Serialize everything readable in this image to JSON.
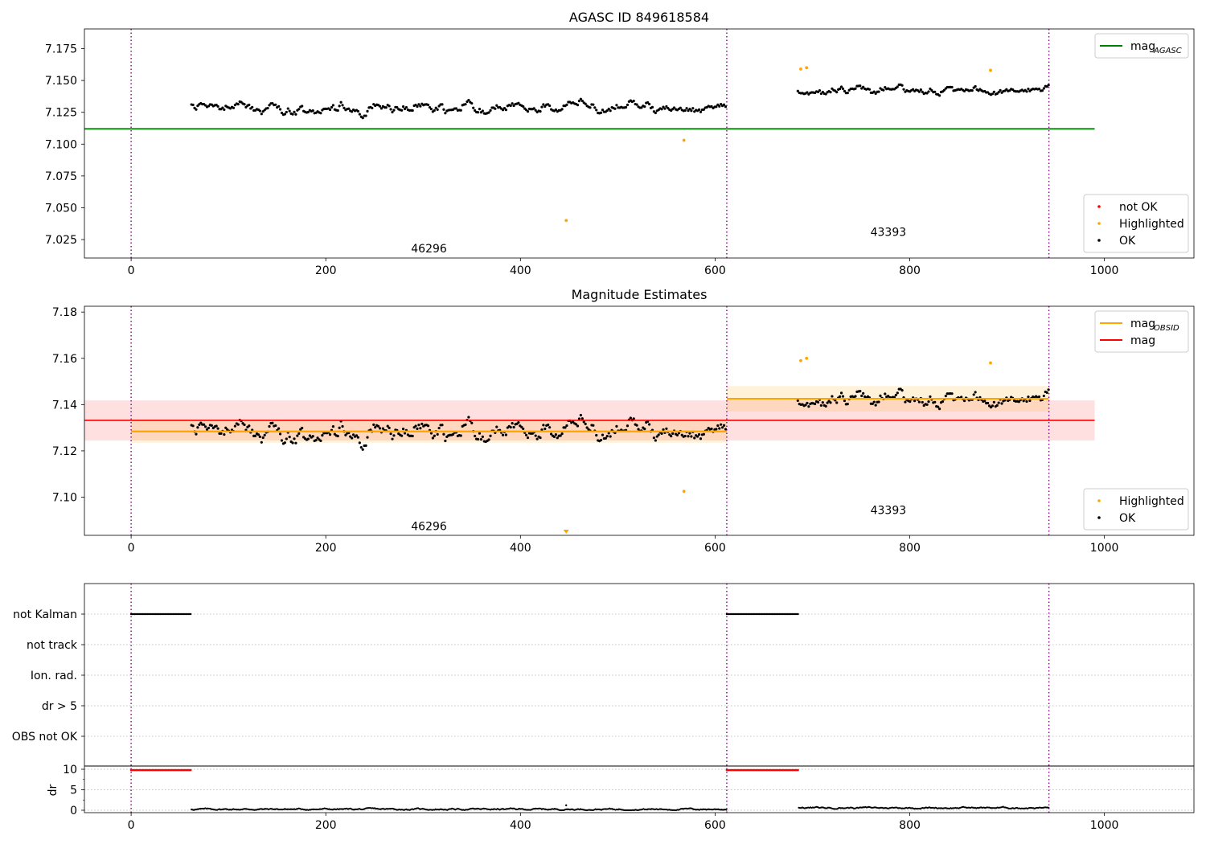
{
  "chart_data": [
    {
      "type": "scatter",
      "title": "AGASC ID 849618584",
      "xlim": [
        -48,
        1092
      ],
      "ylim": [
        7.0105,
        7.1905
      ],
      "xticks": [
        0,
        200,
        400,
        600,
        800,
        1000
      ],
      "yticks": [
        7.025,
        7.05,
        7.075,
        7.1,
        7.125,
        7.15,
        7.175
      ],
      "ytick_labels": [
        "7.025",
        "7.050",
        "7.075",
        "7.100",
        "7.125",
        "7.150",
        "7.175"
      ],
      "obs_boundaries": [
        0,
        612,
        943
      ],
      "obs_labels": [
        {
          "text": "46296",
          "x": 306,
          "y": 7.018
        },
        {
          "text": "43393",
          "x": 778,
          "y": 7.031
        }
      ],
      "mag_agasc": {
        "value": 7.112,
        "x_range": [
          -48,
          990
        ]
      },
      "series": [
        {
          "name": "OK",
          "color": "#000000",
          "segments": [
            {
              "x_start": 62,
              "x_end": 612,
              "level": 7.1285,
              "spread": 0.0065
            },
            {
              "x_start": 685,
              "x_end": 943,
              "level": 7.142,
              "spread": 0.005
            }
          ]
        },
        {
          "name": "Highlighted",
          "color": "#ffa500",
          "points": [
            [
              447,
              7.04
            ],
            [
              568,
              7.103
            ],
            [
              688,
              7.159
            ],
            [
              694,
              7.16
            ],
            [
              883,
              7.158
            ]
          ]
        },
        {
          "name": "not OK",
          "color": "#ff0000",
          "points": []
        }
      ],
      "legend_top": {
        "position": "top-right",
        "entries": [
          {
            "label": "mag",
            "subscript": "AGASC",
            "color": "#008000"
          }
        ]
      },
      "legend_bottom": {
        "position": "lower-right",
        "entries": [
          {
            "label": "not OK",
            "color": "#ff0000"
          },
          {
            "label": "Highlighted",
            "color": "#ffa500"
          },
          {
            "label": "OK",
            "color": "#000000"
          }
        ]
      }
    },
    {
      "type": "scatter",
      "title": "Magnitude Estimates",
      "xlim": [
        -48,
        1092
      ],
      "ylim": [
        7.0835,
        7.1825
      ],
      "xticks": [
        0,
        200,
        400,
        600,
        800,
        1000
      ],
      "yticks": [
        7.1,
        7.12,
        7.14,
        7.16,
        7.18
      ],
      "ytick_labels": [
        "7.10",
        "7.12",
        "7.14",
        "7.16",
        "7.18"
      ],
      "obs_boundaries": [
        0,
        612,
        943
      ],
      "obs_labels": [
        {
          "text": "46296",
          "x": 306,
          "y": 7.0875
        },
        {
          "text": "43393",
          "x": 778,
          "y": 7.0945
        }
      ],
      "mag": {
        "value": 7.1332,
        "band": [
          7.1245,
          7.1418
        ],
        "x_range": [
          -48,
          990
        ],
        "color": "#ff0000"
      },
      "mag_obsid": [
        {
          "x_range": [
            0,
            612
          ],
          "value": 7.1284,
          "band": [
            7.1235,
            7.1335
          ]
        },
        {
          "x_range": [
            612,
            943
          ],
          "value": 7.1425,
          "band": [
            7.137,
            7.148
          ]
        }
      ],
      "series": [
        {
          "name": "OK",
          "color": "#000000",
          "segments": [
            {
              "x_start": 62,
              "x_end": 612,
              "level": 7.1285,
              "spread": 0.0065
            },
            {
              "x_start": 685,
              "x_end": 943,
              "level": 7.142,
              "spread": 0.005
            }
          ]
        },
        {
          "name": "Highlighted",
          "color": "#ffa500",
          "points": [
            [
              568,
              7.1025
            ],
            [
              688,
              7.159
            ],
            [
              694,
              7.16
            ],
            [
              883,
              7.158
            ]
          ],
          "offscale_marker_x": 447
        }
      ],
      "legend_top": {
        "position": "top-right",
        "entries": [
          {
            "label": "mag",
            "subscript": "OBSID",
            "color": "#ffa500"
          },
          {
            "label": "mag",
            "subscript": "",
            "color": "#ff0000"
          }
        ]
      },
      "legend_bottom": {
        "position": "lower-right",
        "entries": [
          {
            "label": "Highlighted",
            "color": "#ffa500"
          },
          {
            "label": "OK",
            "color": "#000000"
          }
        ]
      }
    },
    {
      "type": "scatter",
      "title": "",
      "xlim": [
        -48,
        1092
      ],
      "flag_rows": [
        "not Kalman",
        "not track",
        "Ion. rad.",
        "dr > 5",
        "OBS not OK"
      ],
      "flag_segments": [
        {
          "row": "not Kalman",
          "x_range": [
            0,
            62
          ]
        },
        {
          "row": "not Kalman",
          "x_range": [
            612,
            686
          ]
        }
      ],
      "dr": {
        "ylabel": "dr",
        "yticks": [
          0,
          5,
          10
        ],
        "ylim": [
          -0.5,
          10.5
        ],
        "clipped_value": 9.8,
        "clipped_ranges": [
          [
            0,
            62
          ],
          [
            612,
            686
          ]
        ],
        "segments": [
          {
            "x_start": 62,
            "x_end": 612,
            "level": 0.25
          },
          {
            "x_start": 686,
            "x_end": 943,
            "level": 0.6
          }
        ],
        "outlier": [
          447,
          1.2
        ]
      },
      "xticks": [
        0,
        200,
        400,
        600,
        800,
        1000
      ],
      "obs_boundaries": [
        0,
        612,
        943
      ]
    }
  ]
}
